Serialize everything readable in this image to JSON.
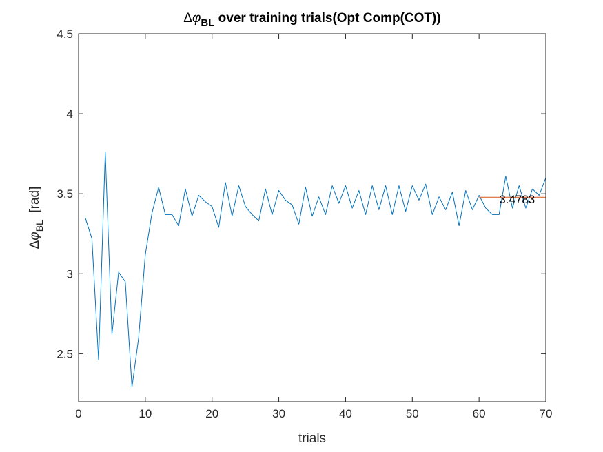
{
  "chart_data": {
    "type": "line",
    "title": {
      "delta": "Δ",
      "phi": "φ",
      "subscript": "BL",
      "rest": " over training trials(Opt Comp(COT))"
    },
    "xlabel": "trials",
    "ylabel": {
      "delta": "Δ",
      "phi": "φ",
      "subscript": "BL",
      "unit": "[rad]"
    },
    "xlim": [
      0,
      70
    ],
    "ylim": [
      2.2,
      4.5
    ],
    "xticks": [
      0,
      10,
      20,
      30,
      40,
      50,
      60,
      70
    ],
    "xtick_labels": [
      "0",
      "10",
      "20",
      "30",
      "40",
      "50",
      "60",
      "70"
    ],
    "yticks": [
      2.5,
      3,
      3.5,
      4,
      4.5
    ],
    "ytick_labels": [
      "2.5",
      "3",
      "3.5",
      "4",
      "4.5"
    ],
    "grid": false,
    "series": [
      {
        "color": "#0072BD",
        "x": [
          1,
          2,
          3,
          4,
          5,
          6,
          7,
          8,
          9,
          10,
          11,
          12,
          13,
          14,
          15,
          16,
          17,
          18,
          19,
          20,
          21,
          22,
          23,
          24,
          25,
          26,
          27,
          28,
          29,
          30,
          31,
          32,
          33,
          34,
          35,
          36,
          37,
          38,
          39,
          40,
          41,
          42,
          43,
          44,
          45,
          46,
          47,
          48,
          49,
          50,
          51,
          52,
          53,
          54,
          55,
          56,
          57,
          58,
          59,
          60,
          61,
          62,
          63,
          64,
          65,
          66,
          67,
          68,
          69,
          70
        ],
        "values": [
          3.35,
          3.22,
          2.46,
          3.76,
          2.62,
          3.01,
          2.95,
          2.29,
          2.6,
          3.12,
          3.38,
          3.54,
          3.37,
          3.37,
          3.3,
          3.53,
          3.36,
          3.49,
          3.45,
          3.42,
          3.29,
          3.57,
          3.36,
          3.55,
          3.42,
          3.37,
          3.33,
          3.53,
          3.37,
          3.52,
          3.46,
          3.43,
          3.31,
          3.54,
          3.36,
          3.48,
          3.37,
          3.55,
          3.44,
          3.55,
          3.41,
          3.52,
          3.37,
          3.55,
          3.4,
          3.55,
          3.37,
          3.55,
          3.39,
          3.55,
          3.46,
          3.56,
          3.37,
          3.48,
          3.4,
          3.51,
          3.3,
          3.52,
          3.4,
          3.49,
          3.41,
          3.37,
          3.37,
          3.61,
          3.41,
          3.55,
          3.41,
          3.53,
          3.49,
          3.6
        ]
      },
      {
        "color": "#D95319",
        "x": [
          60,
          70
        ],
        "values": [
          3.4783,
          3.4783
        ]
      }
    ],
    "annotations": [
      {
        "text": "3.4783",
        "x": 63,
        "y": 3.4783
      }
    ]
  }
}
